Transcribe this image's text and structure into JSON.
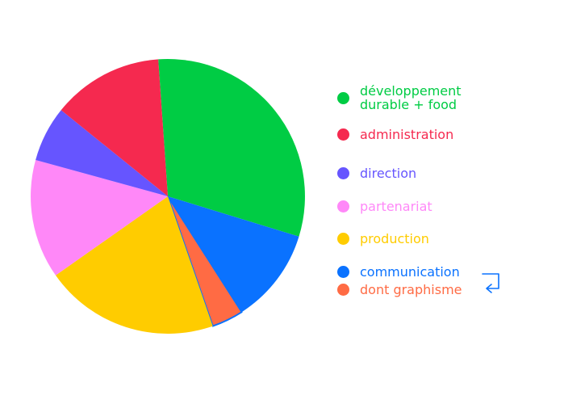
{
  "chart_data": {
    "type": "pie",
    "slices": [
      {
        "label": "développement durable + food",
        "value": 33,
        "color": "#00cc44"
      },
      {
        "label": "communication",
        "value": 12,
        "color": "#0a72ff"
      },
      {
        "label": "dont graphisme",
        "value": 4,
        "color": "#ff6b44"
      },
      {
        "label": "production",
        "value": 22,
        "color": "#ffcc00"
      },
      {
        "label": "partenariat",
        "value": 15,
        "color": "#ff88f8"
      },
      {
        "label": "direction",
        "value": 7,
        "color": "#6655ff"
      },
      {
        "label": "administration",
        "value": 14,
        "color": "#f5294f"
      }
    ],
    "legend_placement": "right",
    "title": ""
  }
}
